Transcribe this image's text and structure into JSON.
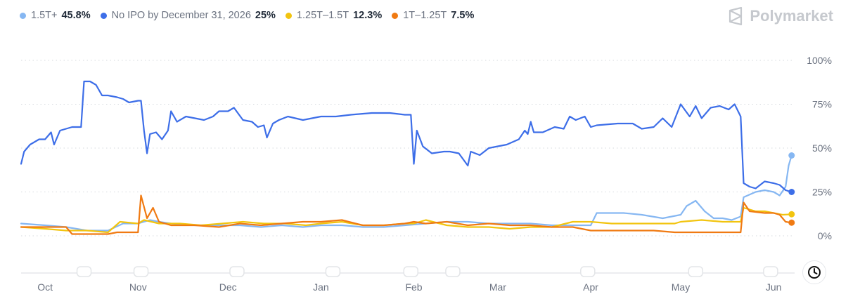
{
  "brand": {
    "name": "Polymarket"
  },
  "legend": [
    {
      "label": "1.5T+",
      "value": "45.8%",
      "color": "#86b7f2"
    },
    {
      "label": "No IPO by December 31, 2026",
      "value": "25%",
      "color": "#3d6ee8"
    },
    {
      "label": "1.25T–1.5T",
      "value": "12.3%",
      "color": "#f2c40f"
    },
    {
      "label": "1T–1.25T",
      "value": "7.5%",
      "color": "#f07a12"
    }
  ],
  "chart_data": {
    "type": "line",
    "title": "",
    "xlabel": "",
    "ylabel": "",
    "ylim": [
      0,
      100
    ],
    "yticks": [
      "0%",
      "25%",
      "50%",
      "75%",
      "100%"
    ],
    "grid": "horizontal-dotted",
    "x_month_labels": [
      "Oct",
      "Nov",
      "Dec",
      "Jan",
      "Feb",
      "Mar",
      "Apr",
      "May",
      "Jun"
    ],
    "x_month_dates": [
      "2025-10-01",
      "2025-11-01",
      "2025-12-01",
      "2026-01-01",
      "2026-02-01",
      "2026-03-01",
      "2026-04-01",
      "2026-05-01",
      "2026-06-01"
    ],
    "x_range": [
      "2025-09-23",
      "2026-06-08"
    ],
    "series": [
      {
        "name": "No IPO by December 31, 2026",
        "color": "#3d6ee8",
        "points": [
          [
            "2025-09-23",
            41
          ],
          [
            "2025-09-24",
            48
          ],
          [
            "2025-09-26",
            52
          ],
          [
            "2025-09-29",
            55
          ],
          [
            "2025-10-01",
            55
          ],
          [
            "2025-10-03",
            59
          ],
          [
            "2025-10-04",
            52
          ],
          [
            "2025-10-06",
            60
          ],
          [
            "2025-10-10",
            62
          ],
          [
            "2025-10-13",
            62
          ],
          [
            "2025-10-14",
            88
          ],
          [
            "2025-10-16",
            88
          ],
          [
            "2025-10-18",
            86
          ],
          [
            "2025-10-20",
            80
          ],
          [
            "2025-10-22",
            80
          ],
          [
            "2025-10-25",
            79
          ],
          [
            "2025-10-27",
            78
          ],
          [
            "2025-10-29",
            76
          ],
          [
            "2025-11-01",
            77
          ],
          [
            "2025-11-02",
            77
          ],
          [
            "2025-11-03",
            60
          ],
          [
            "2025-11-04",
            47
          ],
          [
            "2025-11-05",
            58
          ],
          [
            "2025-11-07",
            59
          ],
          [
            "2025-11-09",
            55
          ],
          [
            "2025-11-11",
            60
          ],
          [
            "2025-11-12",
            71
          ],
          [
            "2025-11-14",
            65
          ],
          [
            "2025-11-17",
            68
          ],
          [
            "2025-11-20",
            67
          ],
          [
            "2025-11-23",
            66
          ],
          [
            "2025-11-26",
            68
          ],
          [
            "2025-11-28",
            71
          ],
          [
            "2025-12-01",
            71
          ],
          [
            "2025-12-03",
            73
          ],
          [
            "2025-12-06",
            66
          ],
          [
            "2025-12-09",
            65
          ],
          [
            "2025-12-11",
            62
          ],
          [
            "2025-12-13",
            63
          ],
          [
            "2025-12-14",
            56
          ],
          [
            "2025-12-16",
            64
          ],
          [
            "2025-12-18",
            66
          ],
          [
            "2025-12-21",
            68
          ],
          [
            "2025-12-26",
            66
          ],
          [
            "2026-01-01",
            68
          ],
          [
            "2026-01-06",
            68
          ],
          [
            "2026-01-11",
            69
          ],
          [
            "2026-01-18",
            70
          ],
          [
            "2026-01-24",
            70
          ],
          [
            "2026-01-29",
            69
          ],
          [
            "2026-01-31",
            69
          ],
          [
            "2026-02-01",
            41
          ],
          [
            "2026-02-02",
            60
          ],
          [
            "2026-02-04",
            51
          ],
          [
            "2026-02-07",
            47
          ],
          [
            "2026-02-11",
            48
          ],
          [
            "2026-02-13",
            48
          ],
          [
            "2026-02-16",
            47
          ],
          [
            "2026-02-19",
            40
          ],
          [
            "2026-02-20",
            48
          ],
          [
            "2026-02-23",
            46
          ],
          [
            "2026-02-26",
            50
          ],
          [
            "2026-03-01",
            51
          ],
          [
            "2026-03-04",
            52
          ],
          [
            "2026-03-08",
            55
          ],
          [
            "2026-03-10",
            60
          ],
          [
            "2026-03-11",
            58
          ],
          [
            "2026-03-12",
            65
          ],
          [
            "2026-03-13",
            59
          ],
          [
            "2026-03-16",
            59
          ],
          [
            "2026-03-20",
            62
          ],
          [
            "2026-03-23",
            61
          ],
          [
            "2026-03-25",
            68
          ],
          [
            "2026-03-27",
            66
          ],
          [
            "2026-03-30",
            68
          ],
          [
            "2026-04-01",
            62
          ],
          [
            "2026-04-03",
            63
          ],
          [
            "2026-04-10",
            64
          ],
          [
            "2026-04-15",
            64
          ],
          [
            "2026-04-18",
            61
          ],
          [
            "2026-04-22",
            62
          ],
          [
            "2026-04-25",
            67
          ],
          [
            "2026-04-28",
            62
          ],
          [
            "2026-05-01",
            75
          ],
          [
            "2026-05-04",
            68
          ],
          [
            "2026-05-06",
            74
          ],
          [
            "2026-05-08",
            67
          ],
          [
            "2026-05-11",
            73
          ],
          [
            "2026-05-14",
            74
          ],
          [
            "2026-05-17",
            72
          ],
          [
            "2026-05-19",
            75
          ],
          [
            "2026-05-21",
            68
          ],
          [
            "2026-05-22",
            30
          ],
          [
            "2026-05-24",
            28
          ],
          [
            "2026-05-26",
            27
          ],
          [
            "2026-05-29",
            31
          ],
          [
            "2026-06-01",
            30
          ],
          [
            "2026-06-03",
            29
          ],
          [
            "2026-06-05",
            26
          ],
          [
            "2026-06-07",
            25
          ]
        ]
      },
      {
        "name": "1.5T+",
        "color": "#86b7f2",
        "points": [
          [
            "2025-09-23",
            7
          ],
          [
            "2025-10-01",
            6
          ],
          [
            "2025-10-08",
            5
          ],
          [
            "2025-10-15",
            3
          ],
          [
            "2025-10-22",
            3
          ],
          [
            "2025-10-27",
            7
          ],
          [
            "2025-11-01",
            7
          ],
          [
            "2025-11-03",
            8
          ],
          [
            "2025-11-05",
            9
          ],
          [
            "2025-11-08",
            8
          ],
          [
            "2025-11-12",
            7
          ],
          [
            "2025-11-20",
            6
          ],
          [
            "2025-11-28",
            6
          ],
          [
            "2025-12-05",
            6
          ],
          [
            "2025-12-12",
            5
          ],
          [
            "2025-12-19",
            6
          ],
          [
            "2025-12-26",
            5
          ],
          [
            "2026-01-01",
            6
          ],
          [
            "2026-01-08",
            6
          ],
          [
            "2026-01-15",
            5
          ],
          [
            "2026-01-22",
            5
          ],
          [
            "2026-01-29",
            6
          ],
          [
            "2026-02-05",
            7
          ],
          [
            "2026-02-12",
            8
          ],
          [
            "2026-02-19",
            8
          ],
          [
            "2026-02-26",
            7
          ],
          [
            "2026-03-05",
            7
          ],
          [
            "2026-03-12",
            7
          ],
          [
            "2026-03-19",
            6
          ],
          [
            "2026-03-26",
            6
          ],
          [
            "2026-04-01",
            6
          ],
          [
            "2026-04-03",
            13
          ],
          [
            "2026-04-12",
            13
          ],
          [
            "2026-04-18",
            12
          ],
          [
            "2026-04-25",
            10
          ],
          [
            "2026-05-01",
            12
          ],
          [
            "2026-05-03",
            17
          ],
          [
            "2026-05-06",
            20
          ],
          [
            "2026-05-09",
            14
          ],
          [
            "2026-05-12",
            10
          ],
          [
            "2026-05-15",
            10
          ],
          [
            "2026-05-18",
            9
          ],
          [
            "2026-05-21",
            11
          ],
          [
            "2026-05-22",
            22
          ],
          [
            "2026-05-26",
            25
          ],
          [
            "2026-05-29",
            26
          ],
          [
            "2026-06-01",
            25
          ],
          [
            "2026-06-03",
            23
          ],
          [
            "2026-06-05",
            28
          ],
          [
            "2026-06-06",
            40
          ],
          [
            "2026-06-07",
            45.8
          ]
        ]
      },
      {
        "name": "1.25T–1.5T",
        "color": "#f2c40f",
        "points": [
          [
            "2025-09-23",
            5
          ],
          [
            "2025-10-01",
            4
          ],
          [
            "2025-10-08",
            3
          ],
          [
            "2025-10-15",
            3
          ],
          [
            "2025-10-22",
            2
          ],
          [
            "2025-10-26",
            8
          ],
          [
            "2025-11-01",
            7
          ],
          [
            "2025-11-03",
            9
          ],
          [
            "2025-11-08",
            7
          ],
          [
            "2025-11-15",
            7
          ],
          [
            "2025-11-22",
            6
          ],
          [
            "2025-11-29",
            7
          ],
          [
            "2025-12-06",
            8
          ],
          [
            "2025-12-13",
            7
          ],
          [
            "2025-12-20",
            7
          ],
          [
            "2025-12-27",
            6
          ],
          [
            "2026-01-01",
            7
          ],
          [
            "2026-01-08",
            8
          ],
          [
            "2026-01-15",
            6
          ],
          [
            "2026-01-22",
            6
          ],
          [
            "2026-01-29",
            7
          ],
          [
            "2026-02-01",
            7
          ],
          [
            "2026-02-05",
            9
          ],
          [
            "2026-02-12",
            6
          ],
          [
            "2026-02-19",
            5
          ],
          [
            "2026-02-26",
            5
          ],
          [
            "2026-03-05",
            4
          ],
          [
            "2026-03-12",
            5
          ],
          [
            "2026-03-19",
            5
          ],
          [
            "2026-03-26",
            8
          ],
          [
            "2026-04-01",
            8
          ],
          [
            "2026-04-08",
            7
          ],
          [
            "2026-04-15",
            7
          ],
          [
            "2026-04-22",
            7
          ],
          [
            "2026-04-29",
            7
          ],
          [
            "2026-05-01",
            8
          ],
          [
            "2026-05-08",
            9
          ],
          [
            "2026-05-15",
            8
          ],
          [
            "2026-05-21",
            8
          ],
          [
            "2026-05-22",
            16
          ],
          [
            "2026-05-26",
            14
          ],
          [
            "2026-05-29",
            14
          ],
          [
            "2026-06-01",
            13
          ],
          [
            "2026-06-04",
            12
          ],
          [
            "2026-06-07",
            12.3
          ]
        ]
      },
      {
        "name": "1T–1.25T",
        "color": "#f07a12",
        "points": [
          [
            "2025-09-23",
            5
          ],
          [
            "2025-10-01",
            5
          ],
          [
            "2025-10-08",
            5
          ],
          [
            "2025-10-10",
            1
          ],
          [
            "2025-10-22",
            1
          ],
          [
            "2025-10-25",
            2
          ],
          [
            "2025-11-01",
            2
          ],
          [
            "2025-11-02",
            23
          ],
          [
            "2025-11-04",
            10
          ],
          [
            "2025-11-06",
            16
          ],
          [
            "2025-11-08",
            8
          ],
          [
            "2025-11-12",
            6
          ],
          [
            "2025-11-20",
            6
          ],
          [
            "2025-11-28",
            5
          ],
          [
            "2025-12-05",
            7
          ],
          [
            "2025-12-12",
            6
          ],
          [
            "2025-12-19",
            7
          ],
          [
            "2025-12-26",
            8
          ],
          [
            "2026-01-01",
            8
          ],
          [
            "2026-01-08",
            9
          ],
          [
            "2026-01-15",
            6
          ],
          [
            "2026-01-22",
            6
          ],
          [
            "2026-01-29",
            7
          ],
          [
            "2026-02-01",
            8
          ],
          [
            "2026-02-05",
            7
          ],
          [
            "2026-02-12",
            8
          ],
          [
            "2026-02-19",
            6
          ],
          [
            "2026-02-26",
            7
          ],
          [
            "2026-03-05",
            6
          ],
          [
            "2026-03-12",
            6
          ],
          [
            "2026-03-19",
            5
          ],
          [
            "2026-03-26",
            5
          ],
          [
            "2026-04-01",
            3
          ],
          [
            "2026-04-08",
            3
          ],
          [
            "2026-04-15",
            3
          ],
          [
            "2026-04-22",
            3
          ],
          [
            "2026-04-29",
            2
          ],
          [
            "2026-05-06",
            2
          ],
          [
            "2026-05-13",
            2
          ],
          [
            "2026-05-20",
            2
          ],
          [
            "2026-05-21",
            2
          ],
          [
            "2026-05-22",
            19
          ],
          [
            "2026-05-24",
            14
          ],
          [
            "2026-05-29",
            13
          ],
          [
            "2026-06-01",
            13
          ],
          [
            "2026-06-03",
            12
          ],
          [
            "2026-06-05",
            8
          ],
          [
            "2026-06-07",
            7.5
          ]
        ]
      }
    ]
  }
}
